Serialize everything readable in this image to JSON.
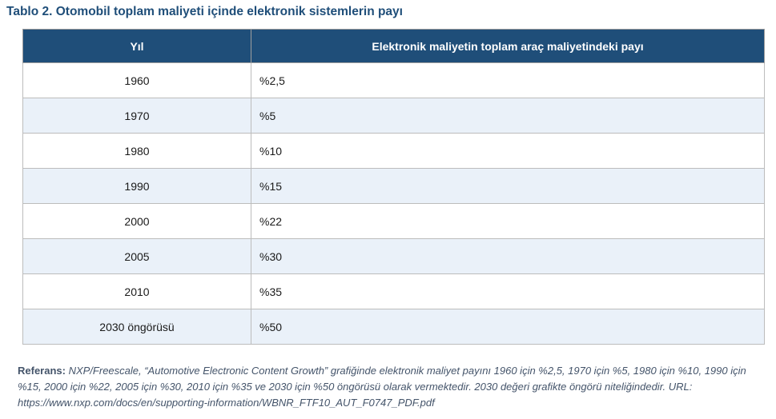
{
  "title": "Tablo 2. Otomobil toplam maliyeti içinde elektronik sistemlerin payı",
  "table": {
    "headers": [
      "Yıl",
      "Elektronik maliyetin toplam araç maliyetindeki payı"
    ],
    "rows": [
      {
        "year": "1960",
        "share": "%2,5"
      },
      {
        "year": "1970",
        "share": "%5"
      },
      {
        "year": "1980",
        "share": "%10"
      },
      {
        "year": "1990",
        "share": "%15"
      },
      {
        "year": "2000",
        "share": "%22"
      },
      {
        "year": "2005",
        "share": "%30"
      },
      {
        "year": "2010",
        "share": "%35"
      },
      {
        "year": "2030 öngörüsü",
        "share": "%50"
      }
    ]
  },
  "reference": {
    "label": "Referans:",
    "text": " NXP/Freescale, “Automotive Electronic Content Growth” grafiğinde elektronik maliyet payını 1960 için %2,5, 1970 için %5, 1980 için %10, 1990 için %15, 2000 için %22, 2005 için %30, 2010 için %35 ve 2030 için %50 öngörüsü olarak vermektedir. 2030 değeri grafikte öngörü niteliğindedir. URL: https://www.nxp.com/docs/en/supporting-information/WBNR_FTF10_AUT_F0747_PDF.pdf"
  },
  "colors": {
    "header_background": "#1F4E79",
    "header_text": "#FFFFFF",
    "alternate_row": "#EAF1F9",
    "title_text": "#1F4E79",
    "reference_text": "#44546A"
  }
}
